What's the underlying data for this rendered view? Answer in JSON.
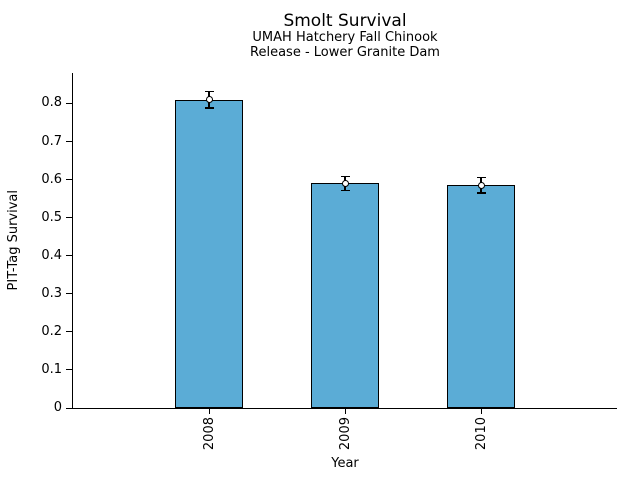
{
  "chart_data": {
    "type": "bar",
    "title": "Smolt Survival",
    "subtitle_lines": [
      "UMAH Hatchery Fall Chinook",
      "Release - Lower Granite Dam"
    ],
    "xlabel": "Year",
    "ylabel": "PIT-Tag Survival",
    "categories": [
      "2008",
      "2009",
      "2010"
    ],
    "values": [
      0.81,
      0.59,
      0.585
    ],
    "error_bars": [
      0.022,
      0.018,
      0.02
    ],
    "ylim": [
      0,
      0.88
    ],
    "yticks": [
      0,
      0.1,
      0.2,
      0.3,
      0.4,
      0.5,
      0.6,
      0.7,
      0.8
    ],
    "ytick_labels": [
      "0",
      "0.1",
      "0.2",
      "0.3",
      "0.4",
      "0.5",
      "0.6",
      "0.7",
      "0.8"
    ],
    "grid": false,
    "legend": "none",
    "bar_color": "#5BACD6",
    "bar_edge_color": "#000000",
    "error_marker": "open-circle",
    "axis_color": "#000000"
  }
}
